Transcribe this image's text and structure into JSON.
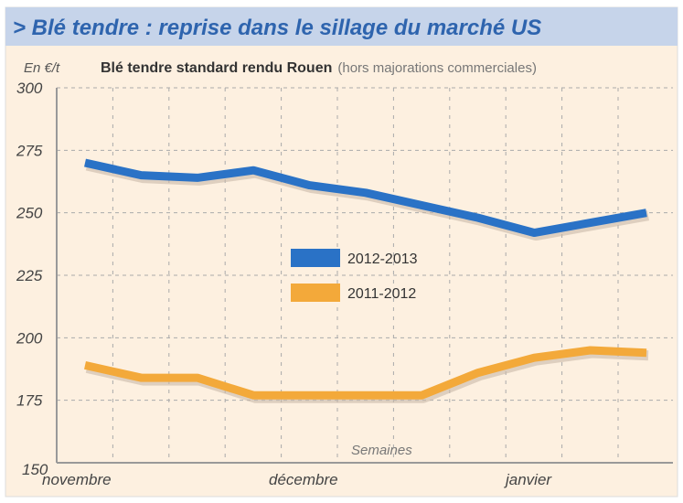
{
  "header": {
    "title": "> Blé tendre : reprise dans le sillage du marché US"
  },
  "chart_data": {
    "type": "line",
    "title": "Blé tendre standard rendu Rouen",
    "subtitle": "(hors majorations commerciales)",
    "ylabel": "En €/t",
    "xlabel": "Semaines",
    "ylim": [
      150,
      300
    ],
    "yticks": [
      "150",
      "175",
      "200",
      "225",
      "250",
      "275",
      "300"
    ],
    "month_labels": [
      "novembre",
      "décembre",
      "janvier"
    ],
    "x": [
      1,
      2,
      3,
      4,
      5,
      6,
      7,
      8,
      9,
      10,
      11
    ],
    "grid": true,
    "legend_position": "center",
    "series": [
      {
        "name": "2012-2013",
        "color": "#2a72c6",
        "values": [
          270,
          265,
          264,
          267,
          261,
          258,
          253,
          248,
          242,
          246,
          250
        ]
      },
      {
        "name": "2011-2012",
        "color": "#f3a93a",
        "values": [
          189,
          184,
          184,
          177,
          177,
          177,
          177,
          186,
          192,
          195,
          194
        ]
      }
    ]
  }
}
